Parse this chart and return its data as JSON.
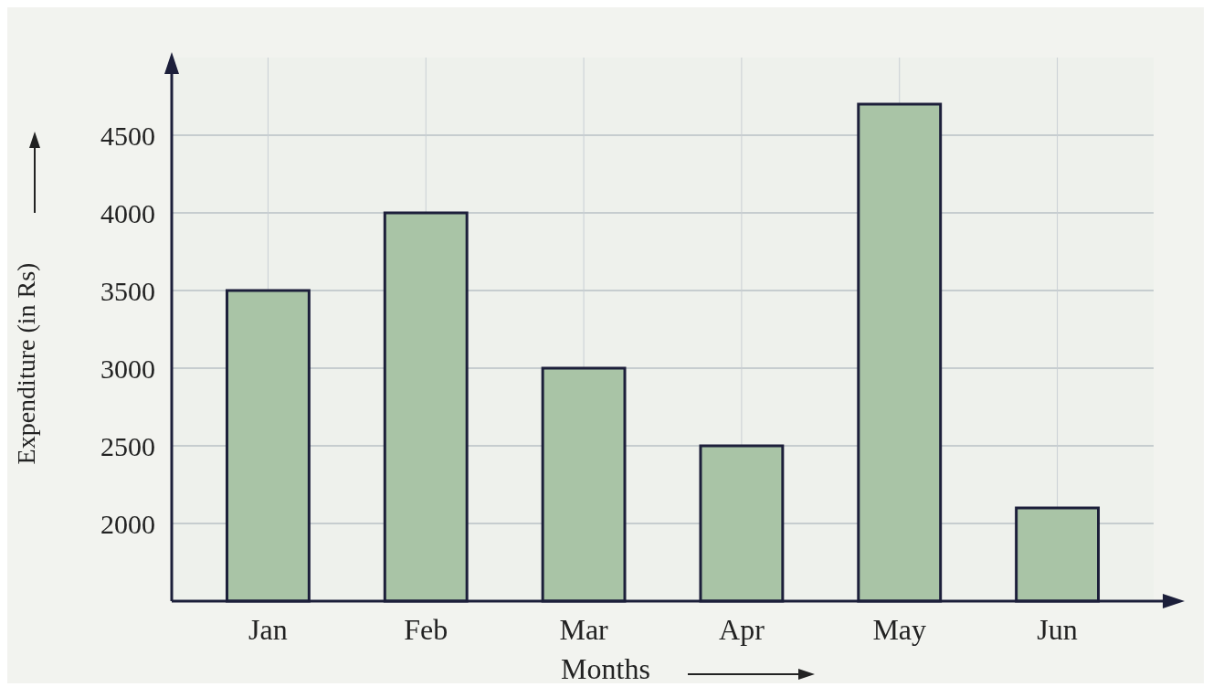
{
  "chart_data": {
    "type": "bar",
    "xlabel": "Months",
    "ylabel": "Expenditure (in Rs)",
    "categories": [
      "Jan",
      "Feb",
      "Mar",
      "Apr",
      "May",
      "Jun"
    ],
    "values": [
      3500,
      4000,
      3000,
      2500,
      4700,
      2100
    ],
    "color": "#a9c4a6",
    "ylim": [
      1500,
      5000
    ],
    "yticks": [
      2000,
      2500,
      3000,
      3500,
      4000,
      4500
    ],
    "grid": true
  }
}
